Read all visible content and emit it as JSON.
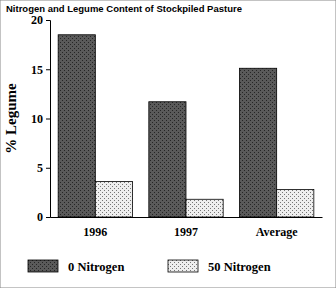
{
  "chart_data": {
    "type": "bar",
    "title": "Nitrogen and Legume Content of Stockpiled Pasture",
    "y_label": "% Legume",
    "categories": [
      "1996",
      "1997",
      "Average"
    ],
    "series": [
      {
        "name": "0 Nitrogen",
        "color": "#5a5a5a",
        "values": [
          18.5,
          11.7,
          15.1
        ]
      },
      {
        "name": "50 Nitrogen",
        "color": "#eeeeee",
        "values": [
          3.6,
          1.8,
          2.8
        ]
      }
    ],
    "ylim": [
      0,
      20
    ],
    "yticks": [
      0,
      5,
      10,
      15,
      20
    ],
    "legend": "bottom"
  }
}
